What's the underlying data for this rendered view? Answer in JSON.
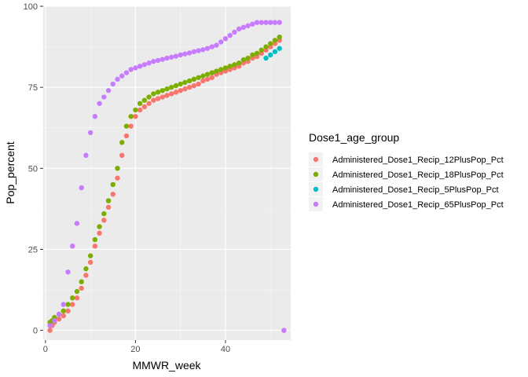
{
  "chart_data": {
    "type": "scatter",
    "xlabel": "MMWR_week",
    "ylabel": "Pop_percent",
    "xlim": [
      -0.5,
      54.5
    ],
    "ylim": [
      -3,
      100
    ],
    "x_ticks": [
      0,
      20,
      40
    ],
    "y_ticks": [
      0,
      25,
      50,
      75,
      100
    ],
    "grid": true,
    "legend_title": "Dose1_age_group",
    "legend_position": "right",
    "series": [
      {
        "name": "Administered_Dose1_Recip_12PlusPop_Pct",
        "color": "#F8766D",
        "points": [
          [
            1,
            0
          ],
          [
            1.5,
            1.5
          ],
          [
            2,
            2.5
          ],
          [
            3,
            3.5
          ],
          [
            4,
            4.5
          ],
          [
            5,
            6
          ],
          [
            6,
            8
          ],
          [
            7,
            10
          ],
          [
            8,
            13
          ],
          [
            9,
            17
          ],
          [
            10,
            21
          ],
          [
            11,
            26
          ],
          [
            12,
            30
          ],
          [
            13,
            34
          ],
          [
            14,
            38
          ],
          [
            15,
            42
          ],
          [
            16,
            47
          ],
          [
            17,
            54
          ],
          [
            18,
            60
          ],
          [
            19,
            63
          ],
          [
            20,
            66
          ],
          [
            21,
            68
          ],
          [
            22,
            69
          ],
          [
            23,
            70
          ],
          [
            24,
            71
          ],
          [
            25,
            71.5
          ],
          [
            26,
            72
          ],
          [
            27,
            72.5
          ],
          [
            28,
            73
          ],
          [
            29,
            73.5
          ],
          [
            30,
            74
          ],
          [
            31,
            74.5
          ],
          [
            32,
            75
          ],
          [
            33,
            75.5
          ],
          [
            34,
            76
          ],
          [
            35,
            77
          ],
          [
            36,
            77.5
          ],
          [
            37,
            78
          ],
          [
            38,
            79
          ],
          [
            39,
            79.5
          ],
          [
            40,
            80
          ],
          [
            41,
            80.5
          ],
          [
            42,
            81
          ],
          [
            43,
            81.5
          ],
          [
            44,
            82.5
          ],
          [
            45,
            83
          ],
          [
            46,
            84
          ],
          [
            47,
            84.5
          ],
          [
            48,
            85.5
          ],
          [
            49,
            86.5
          ],
          [
            50,
            87.5
          ],
          [
            51,
            88.5
          ],
          [
            52,
            89.5
          ],
          [
            53,
            0
          ]
        ]
      },
      {
        "name": "Administered_Dose1_Recip_18PlusPop_Pct",
        "color": "#7CAE00",
        "points": [
          [
            1,
            2.5
          ],
          [
            1.5,
            3
          ],
          [
            2,
            4
          ],
          [
            3,
            5
          ],
          [
            4,
            6
          ],
          [
            5,
            8
          ],
          [
            6,
            10
          ],
          [
            7,
            12
          ],
          [
            8,
            15
          ],
          [
            9,
            19
          ],
          [
            10,
            23
          ],
          [
            11,
            28
          ],
          [
            12,
            32
          ],
          [
            13,
            36
          ],
          [
            14,
            40
          ],
          [
            15,
            45
          ],
          [
            16,
            50
          ],
          [
            17,
            58
          ],
          [
            18,
            63
          ],
          [
            19,
            66
          ],
          [
            20,
            68
          ],
          [
            21,
            70
          ],
          [
            22,
            71
          ],
          [
            23,
            72
          ],
          [
            24,
            73
          ],
          [
            25,
            73.5
          ],
          [
            26,
            74
          ],
          [
            27,
            74.5
          ],
          [
            28,
            75
          ],
          [
            29,
            75.5
          ],
          [
            30,
            76
          ],
          [
            31,
            76.5
          ],
          [
            32,
            77
          ],
          [
            33,
            77.5
          ],
          [
            34,
            78
          ],
          [
            35,
            78.5
          ],
          [
            36,
            79
          ],
          [
            37,
            79.5
          ],
          [
            38,
            80
          ],
          [
            39,
            80.5
          ],
          [
            40,
            81
          ],
          [
            41,
            81.5
          ],
          [
            42,
            82
          ],
          [
            43,
            82.5
          ],
          [
            44,
            83.5
          ],
          [
            45,
            84
          ],
          [
            46,
            85
          ],
          [
            47,
            85.5
          ],
          [
            48,
            86.5
          ],
          [
            49,
            87.5
          ],
          [
            50,
            88.5
          ],
          [
            51,
            89.5
          ],
          [
            52,
            90.5
          ]
        ]
      },
      {
        "name": "Administered_Dose1_Recip_5PlusPop_Pct",
        "color": "#00BFC4",
        "points": [
          [
            49,
            84
          ],
          [
            50,
            85
          ],
          [
            51,
            86
          ],
          [
            52,
            87
          ]
        ]
      },
      {
        "name": "Administered_Dose1_Recip_65PlusPop_Pct",
        "color": "#C77CFF",
        "points": [
          [
            1,
            1.5
          ],
          [
            2,
            3
          ],
          [
            3,
            5
          ],
          [
            4,
            8
          ],
          [
            5,
            18
          ],
          [
            6,
            26
          ],
          [
            7,
            33
          ],
          [
            8,
            44
          ],
          [
            9,
            54
          ],
          [
            10,
            61
          ],
          [
            11,
            66
          ],
          [
            12,
            70
          ],
          [
            13,
            72
          ],
          [
            14,
            74
          ],
          [
            15,
            76
          ],
          [
            16,
            77.5
          ],
          [
            17,
            78.5
          ],
          [
            18,
            79.5
          ],
          [
            19,
            80.5
          ],
          [
            20,
            81
          ],
          [
            21,
            81.5
          ],
          [
            22,
            82
          ],
          [
            23,
            82.5
          ],
          [
            24,
            83
          ],
          [
            25,
            83.3
          ],
          [
            26,
            83.6
          ],
          [
            27,
            84
          ],
          [
            28,
            84.3
          ],
          [
            29,
            84.6
          ],
          [
            30,
            85
          ],
          [
            31,
            85.3
          ],
          [
            32,
            85.6
          ],
          [
            33,
            86
          ],
          [
            34,
            86.3
          ],
          [
            35,
            86.6
          ],
          [
            36,
            87
          ],
          [
            37,
            87.5
          ],
          [
            38,
            88
          ],
          [
            39,
            89
          ],
          [
            40,
            90
          ],
          [
            41,
            91
          ],
          [
            42,
            92
          ],
          [
            43,
            93
          ],
          [
            44,
            93.5
          ],
          [
            45,
            94
          ],
          [
            46,
            94.5
          ],
          [
            47,
            95
          ],
          [
            48,
            95
          ],
          [
            49,
            95
          ],
          [
            50,
            95
          ],
          [
            51,
            95
          ],
          [
            52,
            95
          ],
          [
            53,
            0
          ]
        ]
      }
    ]
  }
}
